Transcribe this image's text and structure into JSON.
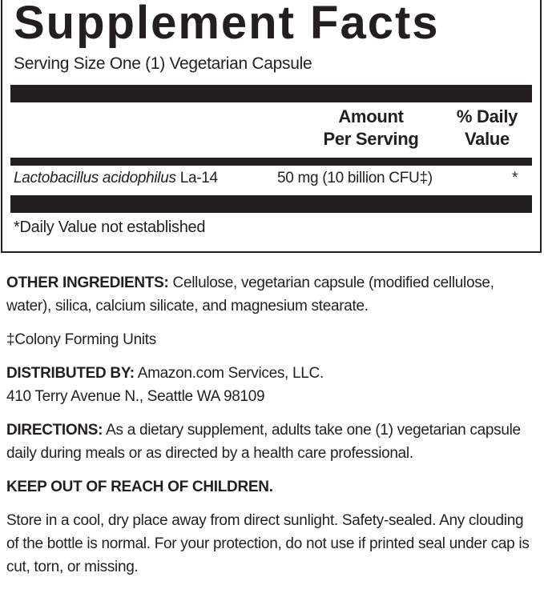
{
  "facts": {
    "title": "Supplement Facts",
    "serving_size": "Serving Size One (1) Vegetarian Capsule",
    "header": {
      "amount": [
        "Amount",
        "Per Serving"
      ],
      "daily_value": [
        "% Daily",
        "Value"
      ]
    },
    "rows": [
      {
        "name": "Lactobacillus acidophilus",
        "strain": "La-14",
        "amount": "50 mg (10 billion CFU‡)",
        "daily_value": "*"
      }
    ],
    "footnote": "*Daily Value not established"
  },
  "sections": [
    {
      "label": "OTHER INGREDIENTS:",
      "text": "Cellulose, vegetarian capsule (modified cellulose, water), silica, calcium silicate, and magnesium stearate."
    },
    {
      "text": "‡Colony Forming Units"
    },
    {
      "label": "DISTRIBUTED BY:",
      "lines": [
        "Amazon.com Services, LLC.",
        "410 Terry Avenue N., Seattle WA 98109"
      ]
    },
    {
      "label": "DIRECTIONS:",
      "text": "As a dietary supplement, adults take one (1) vegetarian capsule daily during meals or as directed by a health  care professional."
    },
    {
      "label": "KEEP OUT OF REACH OF CHILDREN."
    },
    {
      "text": "Store in a cool, dry place away from direct sunlight. Safety-sealed. Any clouding of the bottle is normal. For your protection, do not use if printed seal under cap is cut, torn, or missing."
    }
  ]
}
